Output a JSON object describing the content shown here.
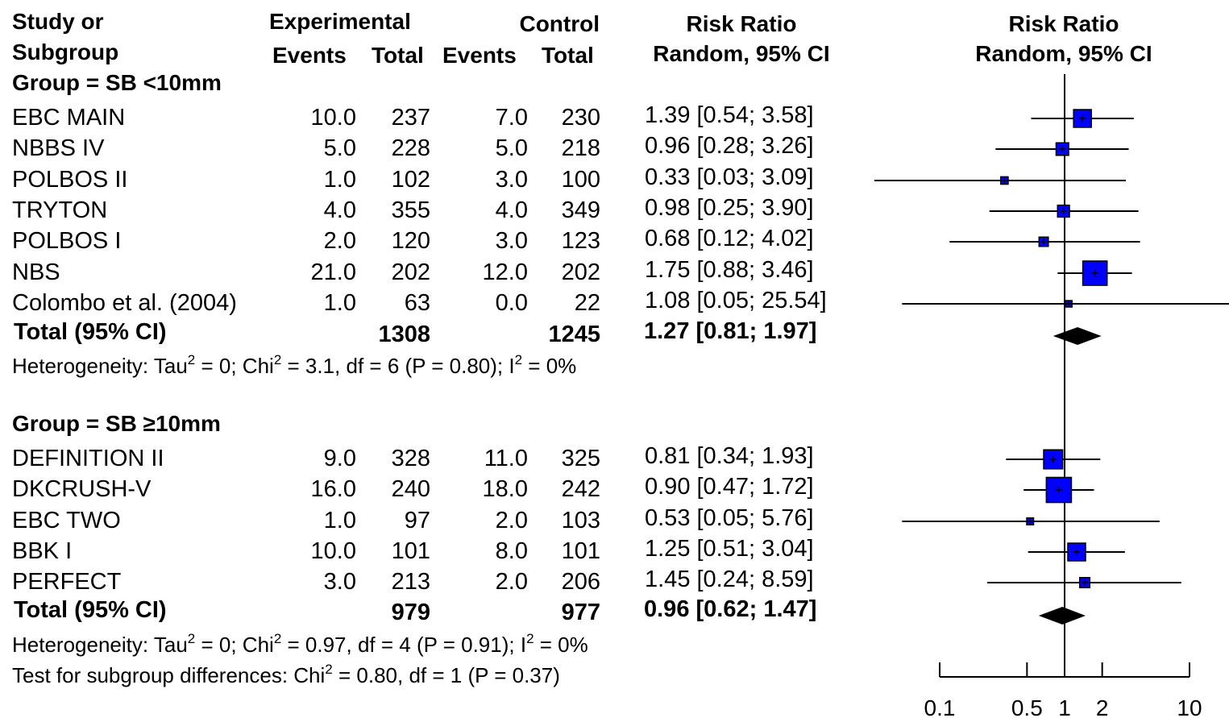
{
  "header": {
    "study_line1": "Study or",
    "study_line2": "Subgroup",
    "experimental": "Experimental",
    "control": "Control",
    "events1": "Events",
    "total1": "Total",
    "events2": "Events",
    "total2": "Total",
    "rr_title": "Risk Ratio",
    "rr_sub": "Random, 95% CI",
    "plot_title": "Risk Ratio",
    "plot_sub": "Random, 95% CI"
  },
  "groups": [
    {
      "label": "Group = SB <10mm",
      "heterogeneity": {
        "prefix": "Heterogeneity: Tau",
        "p1": "2",
        "m1": " = 0; Chi",
        "p2": "2",
        "m2": " = 3.1, df = 6 (P = 0.80); I",
        "p3": "2",
        "m3": " = 0%"
      },
      "total": {
        "label": "Total (95% CI)",
        "exp_total": "1308",
        "ctrl_total": "1245",
        "rr_text": "1.27 [0.81;  1.97]"
      }
    },
    {
      "label": "Group = SB ≥10mm",
      "heterogeneity": {
        "prefix": "Heterogeneity: Tau",
        "p1": "2",
        "m1": " = 0; Chi",
        "p2": "2",
        "m2": " = 0.97, df = 4 (P = 0.91); I",
        "p3": "2",
        "m3": " = 0%"
      },
      "total": {
        "label": "Total (95% CI)",
        "exp_total": "979",
        "ctrl_total": "977",
        "rr_text": "0.96 [0.62;  1.47]"
      }
    }
  ],
  "subgroup_test": {
    "prefix": "Test for subgroup differences: Chi",
    "p1": "2",
    "m1": " = 0.80, df = 1 (P = 0.37)"
  },
  "studies": [
    {
      "name": "EBC MAIN",
      "exp_events": "10.0",
      "exp_total": "237",
      "ctrl_events": "7.0",
      "ctrl_total": "230",
      "rr_text": "1.39 [0.54;  3.58]"
    },
    {
      "name": "NBBS IV",
      "exp_events": "5.0",
      "exp_total": "228",
      "ctrl_events": "5.0",
      "ctrl_total": "218",
      "rr_text": "0.96 [0.28;  3.26]"
    },
    {
      "name": "POLBOS II",
      "exp_events": "1.0",
      "exp_total": "102",
      "ctrl_events": "3.0",
      "ctrl_total": "100",
      "rr_text": "0.33 [0.03;  3.09]"
    },
    {
      "name": "TRYTON",
      "exp_events": "4.0",
      "exp_total": "355",
      "ctrl_events": "4.0",
      "ctrl_total": "349",
      "rr_text": "0.98 [0.25;  3.90]"
    },
    {
      "name": "POLBOS I",
      "exp_events": "2.0",
      "exp_total": "120",
      "ctrl_events": "3.0",
      "ctrl_total": "123",
      "rr_text": "0.68 [0.12;  4.02]"
    },
    {
      "name": "NBS",
      "exp_events": "21.0",
      "exp_total": "202",
      "ctrl_events": "12.0",
      "ctrl_total": "202",
      "rr_text": "1.75 [0.88;  3.46]"
    },
    {
      "name": "Colombo et al. (2004)",
      "exp_events": "1.0",
      "exp_total": "63",
      "ctrl_events": "0.0",
      "ctrl_total": "22",
      "rr_text": "1.08 [0.05; 25.54]"
    },
    {
      "name": "DEFINITION  II",
      "exp_events": "9.0",
      "exp_total": "328",
      "ctrl_events": "11.0",
      "ctrl_total": "325",
      "rr_text": "0.81 [0.34;  1.93]"
    },
    {
      "name": "DKCRUSH-V",
      "exp_events": "16.0",
      "exp_total": "240",
      "ctrl_events": "18.0",
      "ctrl_total": "242",
      "rr_text": "0.90 [0.47;  1.72]"
    },
    {
      "name": "EBC TWO",
      "exp_events": "1.0",
      "exp_total": "97",
      "ctrl_events": "2.0",
      "ctrl_total": "103",
      "rr_text": "0.53 [0.05;  5.76]"
    },
    {
      "name": "BBK I",
      "exp_events": "10.0",
      "exp_total": "101",
      "ctrl_events": "8.0",
      "ctrl_total": "101",
      "rr_text": "1.25 [0.51;  3.04]"
    },
    {
      "name": "PERFECT",
      "exp_events": "3.0",
      "exp_total": "213",
      "ctrl_events": "2.0",
      "ctrl_total": "206",
      "rr_text": "1.45 [0.24;  8.59]"
    }
  ],
  "chart_data": {
    "type": "forest",
    "x_scale": "log",
    "xlim": [
      0.1,
      10
    ],
    "ticks": [
      0.1,
      0.5,
      1,
      2,
      10
    ],
    "tick_labels": [
      "0.1",
      "0.5",
      "1",
      "2",
      "10"
    ],
    "reference_line": 1,
    "marker_color": "#0000ff",
    "studies": [
      {
        "name": "EBC MAIN",
        "rr": 1.39,
        "lo": 0.54,
        "hi": 3.58,
        "weight": 4.0
      },
      {
        "name": "NBBS IV",
        "rr": 0.96,
        "lo": 0.28,
        "hi": 3.26,
        "weight": 2.0
      },
      {
        "name": "POLBOS II",
        "rr": 0.33,
        "lo": 0.03,
        "hi": 3.09,
        "weight": 0.7
      },
      {
        "name": "TRYTON",
        "rr": 0.98,
        "lo": 0.25,
        "hi": 3.9,
        "weight": 1.8
      },
      {
        "name": "POLBOS I",
        "rr": 0.68,
        "lo": 0.12,
        "hi": 4.02,
        "weight": 1.1
      },
      {
        "name": "NBS",
        "rr": 1.75,
        "lo": 0.88,
        "hi": 3.46,
        "weight": 7.5
      },
      {
        "name": "Colombo et al. (2004)",
        "rr": 1.08,
        "lo": 0.05,
        "hi": 25.54,
        "weight": 0.3
      },
      {
        "name": "DEFINITION  II",
        "rr": 0.81,
        "lo": 0.34,
        "hi": 1.93,
        "weight": 4.6
      },
      {
        "name": "DKCRUSH-V",
        "rr": 0.9,
        "lo": 0.47,
        "hi": 1.72,
        "weight": 8.0
      },
      {
        "name": "EBC TWO",
        "rr": 0.53,
        "lo": 0.05,
        "hi": 5.76,
        "weight": 0.6
      },
      {
        "name": "BBK I",
        "rr": 1.25,
        "lo": 0.51,
        "hi": 3.04,
        "weight": 4.0
      },
      {
        "name": "PERFECT",
        "rr": 1.45,
        "lo": 0.24,
        "hi": 8.59,
        "weight": 1.3
      }
    ],
    "totals": [
      {
        "group": "Group = SB <10mm",
        "rr": 1.27,
        "lo": 0.81,
        "hi": 1.97
      },
      {
        "group": "Group = SB ≥10mm",
        "rr": 0.96,
        "lo": 0.62,
        "hi": 1.47
      }
    ]
  }
}
